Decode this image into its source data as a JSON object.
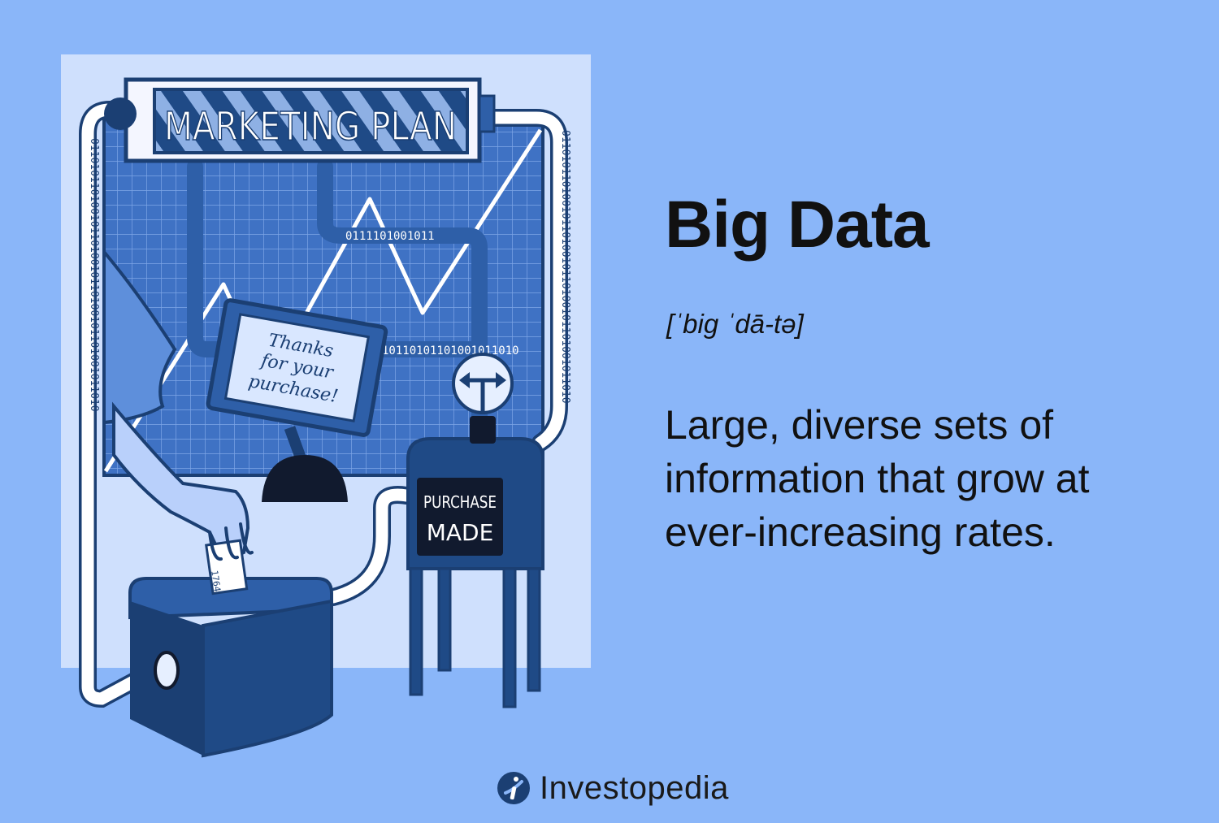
{
  "illustration": {
    "sign": "MARKETING PLAN",
    "screen": [
      "Thanks",
      "for your",
      "purchase!"
    ],
    "machine_label": [
      "PURCHASE",
      "MADE"
    ],
    "card": "1764",
    "binary_vertical": "0110101101001011010010110100101101001011010",
    "binary_horizontal": "10110101101001011010",
    "binary_short": "0111101001011"
  },
  "title": "Big Data",
  "pronunciation": "[ˈbig ˈdā-tə]",
  "definition": "Large, diverse sets of information that grow at ever-increasing rates.",
  "brand": {
    "name": "Investopedia",
    "logo_icon": "investopedia-logo-icon"
  },
  "colors": {
    "background": "#8ab6f9",
    "panel": "#cfe0fd",
    "navy": "#1b3f73",
    "grid": "#4a7fd1",
    "text": "#111111"
  }
}
